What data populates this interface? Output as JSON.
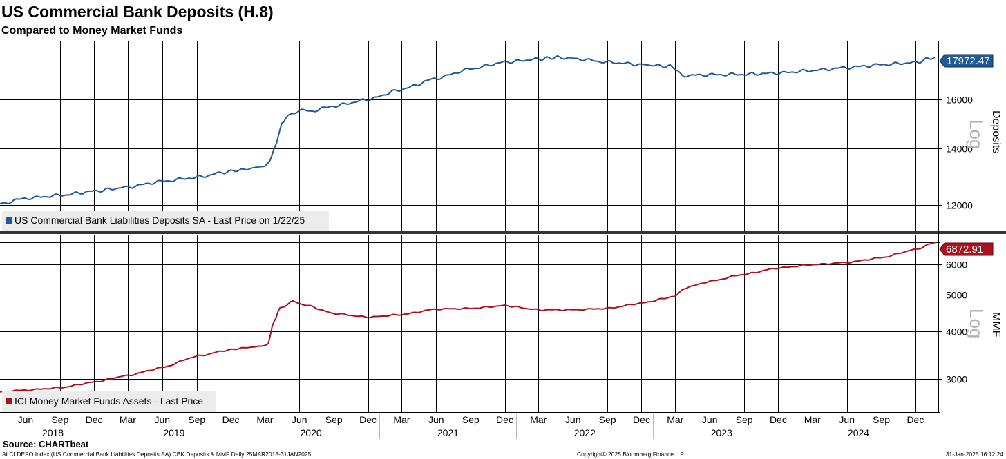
{
  "title": "US Commercial Bank Deposits (H.8)",
  "subtitle": "Compared to Money Market Funds",
  "source": "Source: CHARTbeat",
  "footer_left": "ALCLDEPO Index (US Commercial Bank Liabilities Deposits SA) CBK Deposits & MMF  Daily 25MAR2018-31JAN2025",
  "footer_center": "Copyright© 2025 Bloomberg Finance L.P.",
  "footer_right": "31-Jan-2025 16:12:24",
  "colors": {
    "deposits": "#1f5a96",
    "mmf": "#a8131f",
    "grid": "#000000"
  },
  "x_axis": {
    "month_ticks": [
      {
        "label": "Jun",
        "date": "2018-06-01"
      },
      {
        "label": "Sep",
        "date": "2018-09-01"
      },
      {
        "label": "Dec",
        "date": "2018-12-01"
      },
      {
        "label": "Mar",
        "date": "2019-03-01"
      },
      {
        "label": "Jun",
        "date": "2019-06-01"
      },
      {
        "label": "Sep",
        "date": "2019-09-01"
      },
      {
        "label": "Dec",
        "date": "2019-12-01"
      },
      {
        "label": "Mar",
        "date": "2020-03-01"
      },
      {
        "label": "Jun",
        "date": "2020-06-01"
      },
      {
        "label": "Sep",
        "date": "2020-09-01"
      },
      {
        "label": "Dec",
        "date": "2020-12-01"
      },
      {
        "label": "Mar",
        "date": "2021-03-01"
      },
      {
        "label": "Jun",
        "date": "2021-06-01"
      },
      {
        "label": "Sep",
        "date": "2021-09-01"
      },
      {
        "label": "Dec",
        "date": "2021-12-01"
      },
      {
        "label": "Mar",
        "date": "2022-03-01"
      },
      {
        "label": "Jun",
        "date": "2022-06-01"
      },
      {
        "label": "Sep",
        "date": "2022-09-01"
      },
      {
        "label": "Dec",
        "date": "2022-12-01"
      },
      {
        "label": "Mar",
        "date": "2023-03-01"
      },
      {
        "label": "Jun",
        "date": "2023-06-01"
      },
      {
        "label": "Sep",
        "date": "2023-09-01"
      },
      {
        "label": "Dec",
        "date": "2023-12-01"
      },
      {
        "label": "Mar",
        "date": "2024-03-01"
      },
      {
        "label": "Jun",
        "date": "2024-06-01"
      },
      {
        "label": "Sep",
        "date": "2024-09-01"
      },
      {
        "label": "Dec",
        "date": "2024-12-01"
      }
    ],
    "years": [
      {
        "label": "2018",
        "start": "2018-03-25",
        "end": "2019-01-01"
      },
      {
        "label": "2019",
        "start": "2019-01-01",
        "end": "2020-01-01"
      },
      {
        "label": "2020",
        "start": "2020-01-01",
        "end": "2021-01-01"
      },
      {
        "label": "2021",
        "start": "2021-01-01",
        "end": "2022-01-01"
      },
      {
        "label": "2022",
        "start": "2022-01-01",
        "end": "2023-01-01"
      },
      {
        "label": "2023",
        "start": "2023-01-01",
        "end": "2024-01-01"
      },
      {
        "label": "2024",
        "start": "2024-01-01",
        "end": "2025-01-01"
      }
    ]
  },
  "chart_data": [
    {
      "type": "line",
      "scale": "log",
      "axis_label": "Deposits",
      "scale_label": "Log",
      "legend": "US Commercial Bank Liabilities Deposits SA - Last Price on 1/22/25",
      "last_value_label": "17972.47",
      "last_value": 17972.47,
      "yticks": [
        12000,
        14000,
        16000
      ],
      "ytick_labels": [
        "12000",
        "14000",
        "16000"
      ],
      "ylim": [
        11170,
        18750
      ],
      "x": [
        "2018-03-25",
        "2018-06-01",
        "2018-09-01",
        "2018-12-01",
        "2019-03-01",
        "2019-06-01",
        "2019-09-01",
        "2019-12-01",
        "2020-01-15",
        "2020-03-01",
        "2020-03-15",
        "2020-04-01",
        "2020-04-15",
        "2020-05-01",
        "2020-06-01",
        "2020-07-01",
        "2020-09-01",
        "2020-12-01",
        "2021-03-01",
        "2021-06-01",
        "2021-09-01",
        "2021-12-01",
        "2022-03-01",
        "2022-04-15",
        "2022-06-01",
        "2022-09-01",
        "2022-12-01",
        "2023-02-15",
        "2023-03-01",
        "2023-03-20",
        "2023-06-01",
        "2023-09-01",
        "2023-12-01",
        "2024-03-01",
        "2024-06-01",
        "2024-09-01",
        "2024-12-01",
        "2025-01-22"
      ],
      "y": [
        12040,
        12220,
        12320,
        12460,
        12600,
        12800,
        12940,
        13160,
        13240,
        13350,
        13520,
        14250,
        15000,
        15300,
        15550,
        15500,
        15720,
        16000,
        16450,
        16950,
        17400,
        17720,
        17870,
        17950,
        17900,
        17720,
        17600,
        17520,
        17350,
        17080,
        17120,
        17140,
        17200,
        17320,
        17460,
        17600,
        17700,
        17972
      ]
    },
    {
      "type": "line",
      "scale": "log",
      "axis_label": "MMF",
      "scale_label": "Log",
      "legend": "ICI Money Market Funds Assets - Last Price",
      "last_value_label": "6872.91",
      "last_value": 6872.91,
      "yticks": [
        3000,
        4000,
        5000,
        6000
      ],
      "ytick_labels": [
        "3000",
        "4000",
        "5000",
        "6000"
      ],
      "ylim": [
        2450,
        7200
      ],
      "x": [
        "2018-03-25",
        "2018-06-01",
        "2018-09-01",
        "2018-12-01",
        "2019-03-01",
        "2019-06-01",
        "2019-09-01",
        "2019-12-01",
        "2020-01-15",
        "2020-02-20",
        "2020-03-10",
        "2020-03-25",
        "2020-04-10",
        "2020-05-15",
        "2020-06-15",
        "2020-09-01",
        "2020-12-01",
        "2021-03-01",
        "2021-06-01",
        "2021-09-01",
        "2021-12-01",
        "2022-03-01",
        "2022-06-01",
        "2022-09-01",
        "2022-12-01",
        "2023-03-01",
        "2023-03-25",
        "2023-06-01",
        "2023-09-01",
        "2023-12-01",
        "2024-03-01",
        "2024-06-01",
        "2024-09-01",
        "2024-12-01",
        "2025-01-24"
      ],
      "y": [
        2770,
        2800,
        2840,
        2940,
        3060,
        3210,
        3440,
        3580,
        3630,
        3650,
        3720,
        4250,
        4600,
        4800,
        4700,
        4460,
        4360,
        4430,
        4580,
        4600,
        4680,
        4560,
        4560,
        4600,
        4750,
        4950,
        5200,
        5420,
        5660,
        5880,
        6000,
        6080,
        6260,
        6580,
        6872
      ]
    }
  ]
}
